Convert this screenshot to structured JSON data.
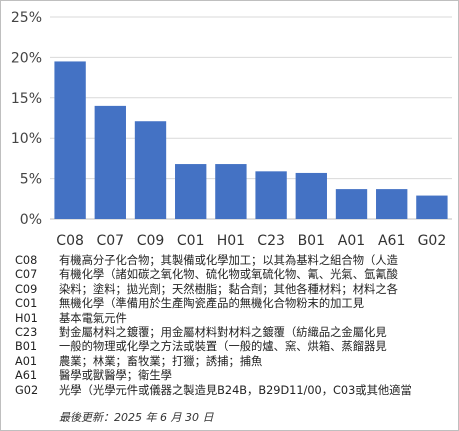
{
  "chart_data": {
    "type": "bar",
    "categories": [
      "C08",
      "C07",
      "C09",
      "C01",
      "H01",
      "C23",
      "B01",
      "A01",
      "A61",
      "G02"
    ],
    "values": [
      19.5,
      14.0,
      12.1,
      6.8,
      6.8,
      5.9,
      5.7,
      3.7,
      3.7,
      2.9
    ],
    "ylim": [
      0,
      25
    ],
    "yticks": [
      0,
      5,
      10,
      15,
      20,
      25
    ],
    "ytick_labels": [
      "0%",
      "5%",
      "10%",
      "15%",
      "20%",
      "25%"
    ],
    "bar_color": "#4472c4",
    "grid": true,
    "legend_entries": [
      {
        "code": "C08",
        "description": "有機高分子化合物；其製備或化學加工；以其為基料之組合物（人造"
      },
      {
        "code": "C07",
        "description": "有機化學（諸如碳之氧化物、硫化物或氧硫化物、氰、光氣、氫氰酸"
      },
      {
        "code": "C09",
        "description": "染料；塗料；拋光劑；天然樹脂；黏合劑；其他各種材料；材料之各"
      },
      {
        "code": "C01",
        "description": "無機化學（準備用於生產陶瓷產品的無機化合物粉末的加工見"
      },
      {
        "code": "H01",
        "description": "基本電氣元件"
      },
      {
        "code": "C23",
        "description": "對金屬材料之鍍覆；用金屬材料對材料之鍍覆（紡織品之金屬化見"
      },
      {
        "code": "B01",
        "description": "一般的物理或化學之方法或裝置（一般的爐、窯、烘箱、蒸餾器見"
      },
      {
        "code": "A01",
        "description": "農業；林業；畜牧業；打獵；誘捕；捕魚"
      },
      {
        "code": "A61",
        "description": "醫學或獸醫學；衛生學"
      },
      {
        "code": "G02",
        "description": "光學（光學元件或儀器之製造見B24B，B29D11/00，C03或其他適當"
      }
    ],
    "footnote": "最後更新：2025 年 6 月 30 日"
  }
}
